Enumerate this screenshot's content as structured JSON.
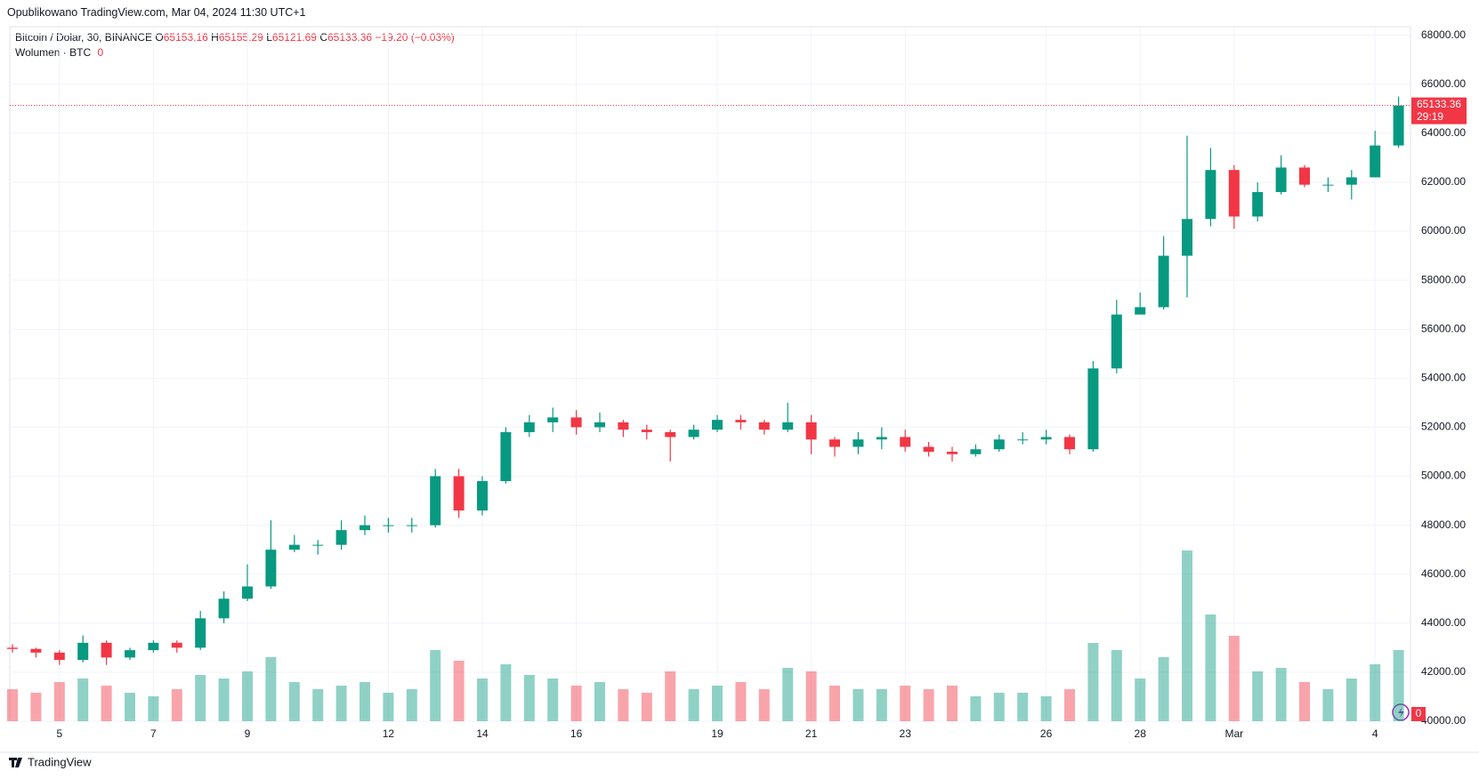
{
  "header": {
    "published": "Opublikowano TradingView.com, Mar 04, 2024 11:30 UTC+1"
  },
  "footer": {
    "brand": "TradingView"
  },
  "chart_data": {
    "type": "candlestick",
    "title": "Bitcoin / Dolar, 30, BINANCE",
    "ohlc_legend": [
      {
        "label": "O",
        "value": 65153.16
      },
      {
        "label": "H",
        "value": 65155.29
      },
      {
        "label": "L",
        "value": 65121.69
      },
      {
        "label": "C",
        "value": 65133.36
      }
    ],
    "change": "−19.20 (−0.03%)",
    "volume_title": "Wolumen · BTC",
    "volume_now": 0,
    "last_price": 65133.36,
    "countdown": "29:19",
    "up_color": "#089981",
    "down_color": "#f23645",
    "grid": true,
    "categories": [
      null,
      null,
      "5",
      null,
      null,
      null,
      "7",
      null,
      null,
      null,
      "9",
      null,
      null,
      null,
      null,
      null,
      "12",
      null,
      null,
      null,
      "14",
      null,
      null,
      null,
      "16",
      null,
      null,
      null,
      null,
      null,
      "19",
      null,
      null,
      null,
      "21",
      null,
      null,
      null,
      "23",
      null,
      null,
      null,
      null,
      null,
      "26",
      null,
      null,
      null,
      "28",
      null,
      null,
      null,
      "Mar",
      null,
      null,
      null,
      null,
      null,
      "4",
      null
    ],
    "open": [
      43000,
      42950,
      42800,
      42500,
      43200,
      42600,
      42900,
      43200,
      43000,
      44200,
      45000,
      45500,
      47000,
      47200,
      47200,
      47800,
      48000,
      48000,
      48000,
      50000,
      48600,
      49800,
      51800,
      52200,
      52400,
      52000,
      52200,
      51900,
      51800,
      51600,
      51900,
      52300,
      52200,
      51900,
      52200,
      51500,
      51200,
      51500,
      51600,
      51200,
      51000,
      50900,
      51100,
      51500,
      51500,
      51600,
      51100,
      54400,
      56600,
      56900,
      59000,
      60500,
      62500,
      60600,
      61600,
      62600,
      61900,
      61900,
      62200,
      63500
    ],
    "high": [
      43150,
      43000,
      42900,
      43500,
      43300,
      43000,
      43300,
      43300,
      44500,
      45300,
      46400,
      48200,
      47600,
      47400,
      48200,
      48400,
      48300,
      48300,
      50300,
      50300,
      50000,
      52000,
      52500,
      52800,
      52700,
      52600,
      52300,
      52100,
      51900,
      52100,
      52500,
      52500,
      52300,
      53000,
      52500,
      51600,
      51800,
      52000,
      51900,
      51400,
      51200,
      51300,
      51700,
      51800,
      51900,
      51700,
      54700,
      57200,
      57500,
      59800,
      63900,
      63400,
      62700,
      62000,
      63100,
      62700,
      62200,
      62500,
      64100,
      65500
    ],
    "low": [
      42800,
      42600,
      42300,
      42400,
      42300,
      42500,
      42800,
      42800,
      42900,
      44000,
      44900,
      45400,
      46900,
      46800,
      47000,
      47600,
      47700,
      47700,
      47900,
      48300,
      48400,
      49700,
      51600,
      51800,
      51700,
      51800,
      51600,
      51500,
      50600,
      51500,
      51800,
      51900,
      51700,
      51800,
      50900,
      50800,
      50900,
      51100,
      51000,
      50800,
      50600,
      50800,
      51000,
      51300,
      51300,
      50900,
      51000,
      54200,
      56600,
      56800,
      57300,
      60200,
      60100,
      60400,
      61500,
      61800,
      61600,
      61300,
      62200,
      63400
    ],
    "close": [
      42950,
      42800,
      42500,
      43200,
      42600,
      42900,
      43200,
      43000,
      44200,
      45000,
      45500,
      47000,
      47200,
      47200,
      47800,
      48000,
      48000,
      48000,
      50000,
      48600,
      49800,
      51800,
      52200,
      52400,
      52000,
      52200,
      51900,
      51800,
      51600,
      51900,
      52300,
      52200,
      51900,
      52200,
      51500,
      51200,
      51500,
      51600,
      51200,
      51000,
      50900,
      51100,
      51500,
      51500,
      51600,
      51100,
      54400,
      56600,
      56900,
      59000,
      60500,
      62500,
      60600,
      61600,
      62600,
      61900,
      61900,
      62200,
      63500,
      65133.36
    ],
    "volume": [
      9000,
      8000,
      11000,
      12000,
      10000,
      8000,
      7000,
      9000,
      13000,
      12000,
      14000,
      18000,
      11000,
      9000,
      10000,
      11000,
      8000,
      9000,
      20000,
      17000,
      12000,
      16000,
      13000,
      12000,
      10000,
      11000,
      9000,
      8000,
      14000,
      9000,
      10000,
      11000,
      9000,
      15000,
      14000,
      10000,
      9000,
      9000,
      10000,
      9000,
      10000,
      7000,
      8000,
      8000,
      7000,
      9000,
      22000,
      20000,
      12000,
      18000,
      48000,
      30000,
      24000,
      14000,
      15000,
      11000,
      9000,
      12000,
      16000,
      20000
    ],
    "vlim": [
      0,
      60000
    ],
    "ylim": [
      40000,
      68350
    ],
    "yticks": [
      {
        "value": 40000,
        "label": "40000.00"
      },
      {
        "value": 42000,
        "label": "42000.00"
      },
      {
        "value": 44000,
        "label": "44000.00"
      },
      {
        "value": 46000,
        "label": "46000.00"
      },
      {
        "value": 48000,
        "label": "48000.00"
      },
      {
        "value": 50000,
        "label": "50000.00"
      },
      {
        "value": 52000,
        "label": "52000.00"
      },
      {
        "value": 54000,
        "label": "54000.00"
      },
      {
        "value": 56000,
        "label": "56000.00"
      },
      {
        "value": 58000,
        "label": "58000.00"
      },
      {
        "value": 60000,
        "label": "60000.00"
      },
      {
        "value": 62000,
        "label": "62000.00"
      },
      {
        "value": 64000,
        "label": "64000.00"
      },
      {
        "value": 66000,
        "label": "66000.00"
      },
      {
        "value": 68000,
        "label": "68000.00"
      }
    ]
  }
}
